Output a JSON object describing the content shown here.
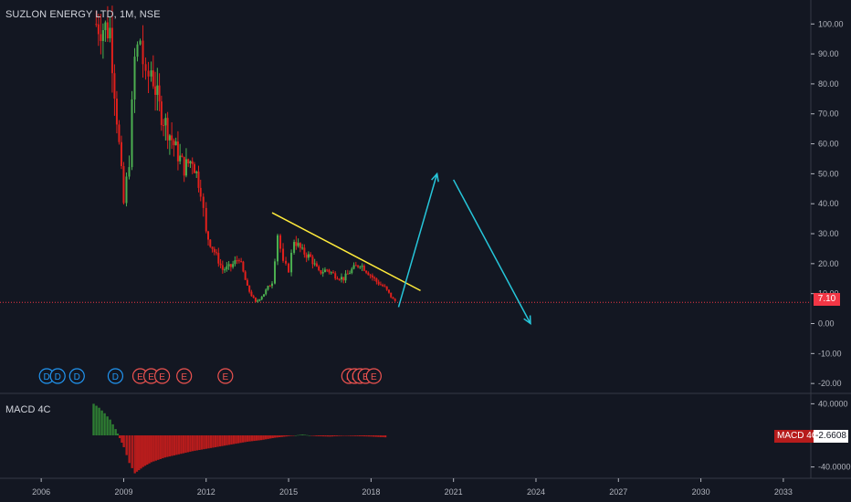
{
  "header": {
    "symbol_title": "SUZLON ENERGY LTD, 1M, NSE"
  },
  "indicator": {
    "title": "MACD 4C",
    "tag_name": "MACD 4C",
    "tag_value": "-2.6608"
  },
  "last_price": "7.10",
  "colors": {
    "background": "#131722",
    "up": "#26a69a",
    "up_candle": "#4caf50",
    "down_candle": "#e0201c",
    "trendline": "#ffeb3b",
    "projection": "#26c6da",
    "price_line": "#f23645",
    "macd_pos": "#2e7d32",
    "macd_neg": "#b71c1c",
    "dividend": "#2196f3",
    "earnings": "#ef5350"
  },
  "chart_data": [
    {
      "type": "candlestick",
      "title": "SUZLON ENERGY LTD, 1M, NSE",
      "x_ticks": [
        "2006",
        "2009",
        "2012",
        "2015",
        "2018",
        "2021",
        "2024",
        "2027",
        "2030",
        "2033"
      ],
      "y_ticks": [
        "100.00",
        "90.00",
        "80.00",
        "70.00",
        "60.00",
        "50.00",
        "40.00",
        "30.00",
        "20.00",
        "10.00",
        "0.00",
        "-10.00",
        "-20.00"
      ],
      "ylim": [
        -23,
        108
      ],
      "xlim": [
        2004.5,
        2034
      ],
      "last_value": 7.1,
      "closes": [
        [
          2008.0,
          100
        ],
        [
          2008.5,
          98
        ],
        [
          2009.0,
          40
        ],
        [
          2009.2,
          55
        ],
        [
          2009.4,
          88
        ],
        [
          2009.6,
          95
        ],
        [
          2009.8,
          80
        ],
        [
          2010.0,
          85
        ],
        [
          2010.3,
          72
        ],
        [
          2010.6,
          65
        ],
        [
          2010.9,
          58
        ],
        [
          2011.2,
          52
        ],
        [
          2011.5,
          55
        ],
        [
          2011.8,
          45
        ],
        [
          2012.0,
          30
        ],
        [
          2012.3,
          24
        ],
        [
          2012.6,
          18
        ],
        [
          2012.9,
          19
        ],
        [
          2013.2,
          22
        ],
        [
          2013.5,
          12
        ],
        [
          2013.8,
          7
        ],
        [
          2014.1,
          10
        ],
        [
          2014.4,
          14
        ],
        [
          2014.6,
          30
        ],
        [
          2014.8,
          20
        ],
        [
          2015.0,
          18
        ],
        [
          2015.2,
          28
        ],
        [
          2015.5,
          24
        ],
        [
          2015.8,
          22
        ],
        [
          2016.1,
          17
        ],
        [
          2016.4,
          18
        ],
        [
          2016.7,
          16
        ],
        [
          2017.0,
          15
        ],
        [
          2017.3,
          18
        ],
        [
          2017.6,
          20
        ],
        [
          2017.9,
          17
        ],
        [
          2018.2,
          14
        ],
        [
          2018.5,
          12
        ],
        [
          2018.8,
          8
        ],
        [
          2018.95,
          7.1
        ]
      ],
      "trendline": [
        [
          2014.4,
          37
        ],
        [
          2019.8,
          11
        ]
      ],
      "projection": [
        [
          [
            2019.0,
            5.5
          ],
          [
            2020.4,
            50
          ]
        ],
        [
          [
            2021.0,
            48
          ],
          [
            2023.8,
            0
          ]
        ]
      ],
      "events": [
        {
          "label": "D",
          "year": 2006.2,
          "kind": "dividend"
        },
        {
          "label": "D",
          "year": 2006.6,
          "kind": "dividend"
        },
        {
          "label": "D",
          "year": 2007.3,
          "kind": "dividend"
        },
        {
          "label": "D",
          "year": 2008.7,
          "kind": "dividend"
        },
        {
          "label": "E",
          "year": 2009.6,
          "kind": "earnings"
        },
        {
          "label": "E",
          "year": 2010.0,
          "kind": "earnings"
        },
        {
          "label": "E",
          "year": 2010.4,
          "kind": "earnings"
        },
        {
          "label": "E",
          "year": 2011.2,
          "kind": "earnings"
        },
        {
          "label": "E",
          "year": 2012.7,
          "kind": "earnings"
        },
        {
          "label": "E",
          "year": 2017.2,
          "kind": "earnings"
        },
        {
          "label": "E",
          "year": 2017.4,
          "kind": "earnings"
        },
        {
          "label": "E",
          "year": 2017.6,
          "kind": "earnings"
        },
        {
          "label": "E",
          "year": 2017.8,
          "kind": "earnings"
        },
        {
          "label": "E",
          "year": 2018.1,
          "kind": "earnings"
        }
      ]
    },
    {
      "type": "bar",
      "title": "MACD 4C",
      "y_ticks": [
        "40.0000",
        "-40.0000"
      ],
      "ylim": [
        -52,
        52
      ],
      "values": [
        [
          2007.9,
          40
        ],
        [
          2008.1,
          35
        ],
        [
          2008.3,
          28
        ],
        [
          2008.5,
          20
        ],
        [
          2008.7,
          8
        ],
        [
          2009.0,
          -15
        ],
        [
          2009.2,
          -35
        ],
        [
          2009.4,
          -48
        ],
        [
          2009.7,
          -40
        ],
        [
          2010.0,
          -34
        ],
        [
          2010.5,
          -28
        ],
        [
          2011.0,
          -24
        ],
        [
          2011.5,
          -20
        ],
        [
          2012.0,
          -17
        ],
        [
          2012.5,
          -14
        ],
        [
          2013.0,
          -11
        ],
        [
          2013.5,
          -8
        ],
        [
          2014.0,
          -6
        ],
        [
          2014.5,
          -3
        ],
        [
          2015.0,
          -1
        ],
        [
          2015.5,
          1
        ],
        [
          2016.0,
          -1
        ],
        [
          2016.5,
          -1.5
        ],
        [
          2017.0,
          -0.5
        ],
        [
          2017.5,
          -1
        ],
        [
          2018.0,
          -1.5
        ],
        [
          2018.6,
          -2.6608
        ]
      ]
    }
  ]
}
